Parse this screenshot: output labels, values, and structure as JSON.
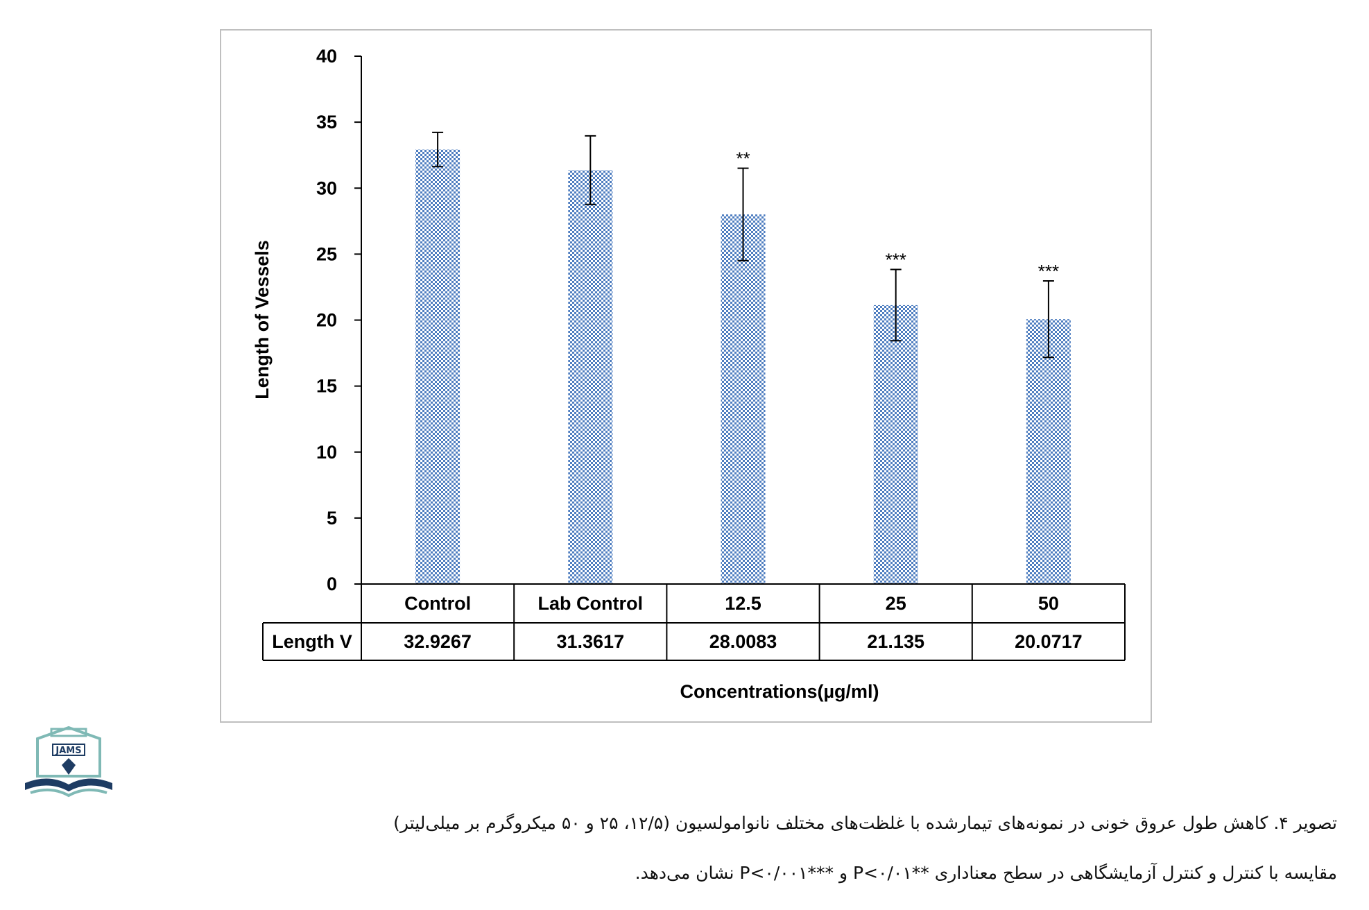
{
  "chart_data": {
    "type": "bar",
    "categories": [
      "Control",
      "Lab Control",
      "12.5",
      "25",
      "50"
    ],
    "series": [
      {
        "name": "Length V",
        "values": [
          32.9267,
          31.3617,
          28.0083,
          21.135,
          20.0717
        ],
        "value_labels": [
          "32.9267",
          "31.3617",
          "28.0083",
          "21.135",
          "20.0717"
        ],
        "error_plus": [
          1.3,
          2.6,
          3.5,
          2.7,
          2.9
        ],
        "error_minus": [
          1.3,
          2.6,
          3.5,
          2.7,
          2.9
        ]
      }
    ],
    "significance": [
      "",
      "",
      "**",
      "***",
      "***"
    ],
    "ylabel": "Length of Vessels",
    "xlabel": "Concentrations(µg/ml)",
    "yticks": [
      "0",
      "5",
      "10",
      "15",
      "20",
      "25",
      "30",
      "35",
      "40"
    ],
    "ylim": [
      0,
      40
    ],
    "table_row_label": "Length V",
    "bar_color": "#4f7ec0",
    "bar_pattern": "checkered",
    "legend": "data-table"
  },
  "logo": {
    "text": "JAMS"
  },
  "caption": {
    "line1": "تصویر ۴. کاهش طول عروق خونی در نمونه‌های تیمارشده با غلظت‌های مختلف نانوامولسیون (۱۲/۵، ۲۵ و ۵۰ میکروگرم بر میلی‌لیتر)",
    "line2": "مقایسه با کنترل و کنترل آزمایشگاهی در سطح معناداری **P<۰/۰۱ و ***P<۰/۰۰۱ نشان می‌دهد."
  }
}
